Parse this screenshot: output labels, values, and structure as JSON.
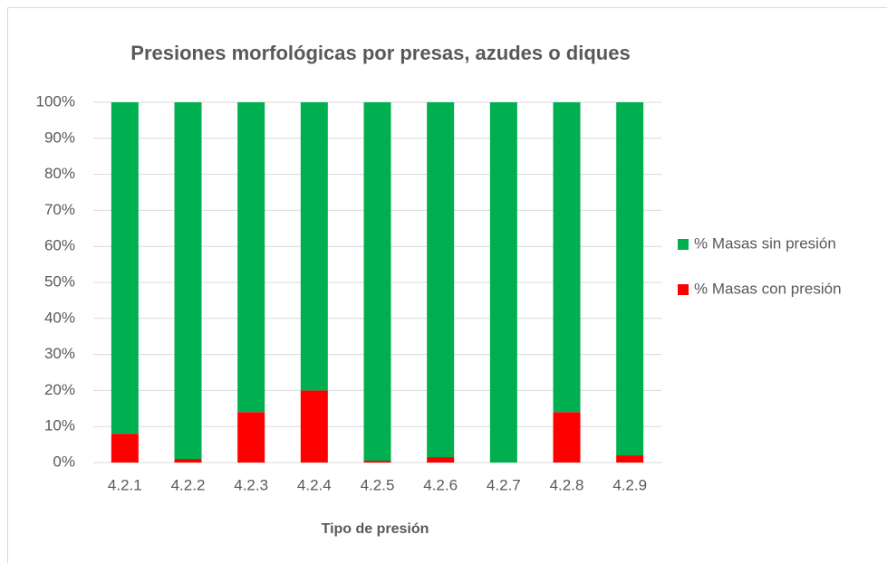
{
  "chart_data": {
    "type": "stacked_bar",
    "title": "Presiones morfológicas por presas, azudes o diques",
    "xlabel": "Tipo de presión",
    "categories": [
      "4.2.1",
      "4.2.2",
      "4.2.3",
      "4.2.4",
      "4.2.5",
      "4.2.6",
      "4.2.7",
      "4.2.8",
      "4.2.9"
    ],
    "series": [
      {
        "name": "% Masas sin presión",
        "color": "#00b050",
        "values": [
          92,
          99,
          86,
          80,
          99.5,
          98.5,
          100,
          86,
          98
        ]
      },
      {
        "name": "% Masas con presión",
        "color": "#ff0000",
        "values": [
          8,
          1,
          14,
          20,
          0.5,
          1.5,
          0,
          14,
          2
        ]
      }
    ],
    "ylim": [
      0,
      100
    ],
    "yticks": [
      {
        "value": 0,
        "label": "0%"
      },
      {
        "value": 10,
        "label": "10%"
      },
      {
        "value": 20,
        "label": "20%"
      },
      {
        "value": 30,
        "label": "30%"
      },
      {
        "value": 40,
        "label": "40%"
      },
      {
        "value": 50,
        "label": "50%"
      },
      {
        "value": 60,
        "label": "60%"
      },
      {
        "value": 70,
        "label": "70%"
      },
      {
        "value": 80,
        "label": "80%"
      },
      {
        "value": 90,
        "label": "90%"
      },
      {
        "value": 100,
        "label": "100%"
      }
    ],
    "grid": true,
    "legend": "right"
  }
}
